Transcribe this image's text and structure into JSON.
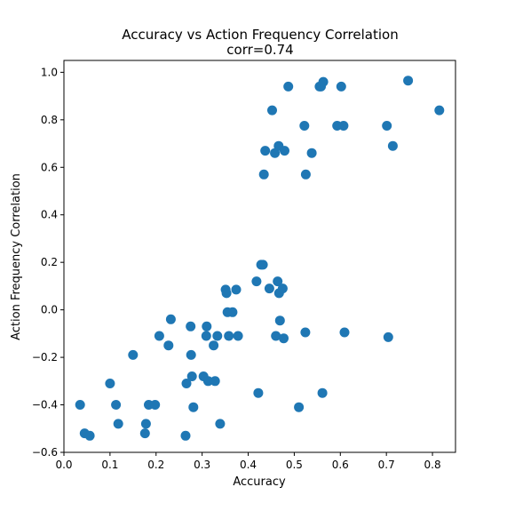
{
  "chart_data": {
    "type": "scatter",
    "title": "Accuracy vs Action Frequency Correlation",
    "subtitle": "corr=0.74",
    "xlabel": "Accuracy",
    "ylabel": "Action Frequency Correlation",
    "xlim": [
      0.0,
      0.85
    ],
    "ylim": [
      -0.6,
      1.05
    ],
    "xticks": [
      "0.0",
      "0.1",
      "0.2",
      "0.3",
      "0.4",
      "0.5",
      "0.6",
      "0.7",
      "0.8"
    ],
    "yticks": [
      "−0.6",
      "−0.4",
      "−0.2",
      "0.0",
      "0.2",
      "0.4",
      "0.6",
      "0.8",
      "1.0"
    ],
    "grid": false,
    "marker_color": "#1f77b4",
    "points": [
      {
        "x": 0.035,
        "y": -0.4
      },
      {
        "x": 0.045,
        "y": -0.52
      },
      {
        "x": 0.056,
        "y": -0.53
      },
      {
        "x": 0.1,
        "y": -0.31
      },
      {
        "x": 0.113,
        "y": -0.4
      },
      {
        "x": 0.118,
        "y": -0.48
      },
      {
        "x": 0.15,
        "y": -0.19
      },
      {
        "x": 0.176,
        "y": -0.52
      },
      {
        "x": 0.178,
        "y": -0.48
      },
      {
        "x": 0.184,
        "y": -0.4
      },
      {
        "x": 0.198,
        "y": -0.4
      },
      {
        "x": 0.207,
        "y": -0.11
      },
      {
        "x": 0.227,
        "y": -0.15
      },
      {
        "x": 0.232,
        "y": -0.04
      },
      {
        "x": 0.264,
        "y": -0.53
      },
      {
        "x": 0.266,
        "y": -0.31
      },
      {
        "x": 0.275,
        "y": -0.07
      },
      {
        "x": 0.276,
        "y": -0.19
      },
      {
        "x": 0.278,
        "y": -0.28
      },
      {
        "x": 0.281,
        "y": -0.41
      },
      {
        "x": 0.303,
        "y": -0.28
      },
      {
        "x": 0.309,
        "y": -0.11
      },
      {
        "x": 0.31,
        "y": -0.07
      },
      {
        "x": 0.313,
        "y": -0.3
      },
      {
        "x": 0.325,
        "y": -0.15
      },
      {
        "x": 0.328,
        "y": -0.3
      },
      {
        "x": 0.333,
        "y": -0.11
      },
      {
        "x": 0.339,
        "y": -0.48
      },
      {
        "x": 0.351,
        "y": 0.085
      },
      {
        "x": 0.353,
        "y": 0.07
      },
      {
        "x": 0.355,
        "y": -0.01
      },
      {
        "x": 0.358,
        "y": -0.11
      },
      {
        "x": 0.366,
        "y": -0.01
      },
      {
        "x": 0.374,
        "y": 0.085
      },
      {
        "x": 0.378,
        "y": -0.11
      },
      {
        "x": 0.418,
        "y": 0.12
      },
      {
        "x": 0.422,
        "y": -0.35
      },
      {
        "x": 0.428,
        "y": 0.19
      },
      {
        "x": 0.432,
        "y": 0.19
      },
      {
        "x": 0.434,
        "y": 0.57
      },
      {
        "x": 0.437,
        "y": 0.67
      },
      {
        "x": 0.446,
        "y": 0.09
      },
      {
        "x": 0.452,
        "y": 0.84
      },
      {
        "x": 0.458,
        "y": 0.66
      },
      {
        "x": 0.46,
        "y": -0.11
      },
      {
        "x": 0.464,
        "y": 0.12
      },
      {
        "x": 0.466,
        "y": 0.69
      },
      {
        "x": 0.467,
        "y": 0.07
      },
      {
        "x": 0.469,
        "y": -0.045
      },
      {
        "x": 0.475,
        "y": 0.09
      },
      {
        "x": 0.477,
        "y": -0.12
      },
      {
        "x": 0.479,
        "y": 0.67
      },
      {
        "x": 0.487,
        "y": 0.94
      },
      {
        "x": 0.51,
        "y": -0.41
      },
      {
        "x": 0.522,
        "y": 0.775
      },
      {
        "x": 0.524,
        "y": -0.095
      },
      {
        "x": 0.525,
        "y": 0.57
      },
      {
        "x": 0.538,
        "y": 0.66
      },
      {
        "x": 0.555,
        "y": 0.94
      },
      {
        "x": 0.558,
        "y": 0.94
      },
      {
        "x": 0.561,
        "y": -0.35
      },
      {
        "x": 0.563,
        "y": 0.96
      },
      {
        "x": 0.593,
        "y": 0.775
      },
      {
        "x": 0.602,
        "y": 0.94
      },
      {
        "x": 0.607,
        "y": 0.775
      },
      {
        "x": 0.609,
        "y": -0.095
      },
      {
        "x": 0.701,
        "y": 0.775
      },
      {
        "x": 0.704,
        "y": -0.115
      },
      {
        "x": 0.714,
        "y": 0.69
      },
      {
        "x": 0.747,
        "y": 0.965
      },
      {
        "x": 0.815,
        "y": 0.84
      }
    ]
  }
}
